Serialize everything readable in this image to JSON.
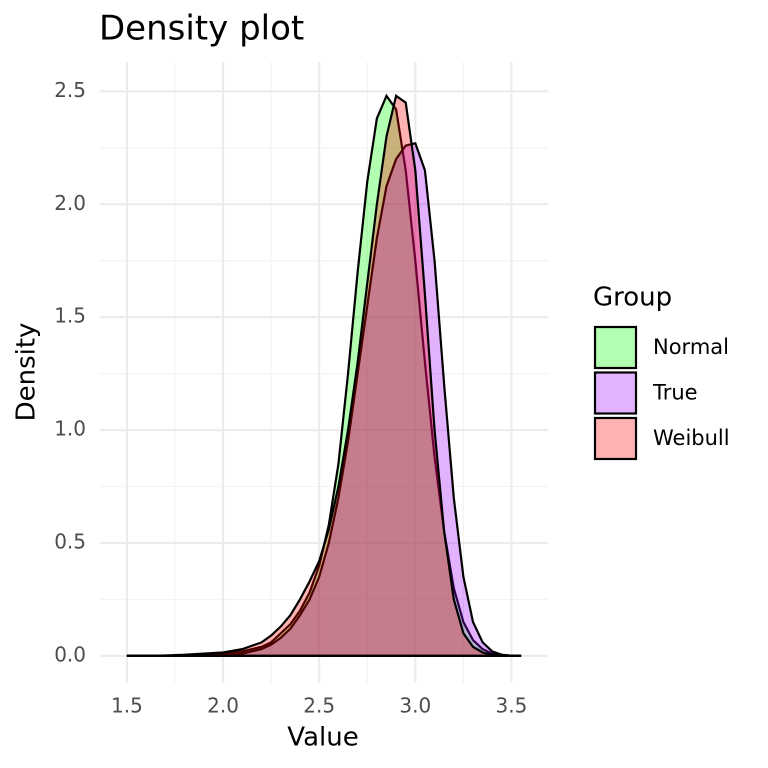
{
  "chart_data": {
    "type": "density",
    "title": "Density plot",
    "x_label": "Value",
    "y_label": "Density",
    "legend_title": "Group",
    "legend_position": "right",
    "grid": true,
    "x": [
      1.5,
      1.6,
      1.7,
      1.8,
      1.9,
      2.0,
      2.1,
      2.2,
      2.25,
      2.3,
      2.35,
      2.4,
      2.45,
      2.5,
      2.55,
      2.6,
      2.65,
      2.7,
      2.75,
      2.8,
      2.85,
      2.9,
      2.95,
      3.0,
      3.05,
      3.1,
      3.15,
      3.2,
      3.25,
      3.3,
      3.35,
      3.4,
      3.45,
      3.5,
      3.55
    ],
    "series": [
      {
        "name": "Normal",
        "color": "#00ff00",
        "values": [
          0,
          0,
          0,
          0.002,
          0.005,
          0.01,
          0.02,
          0.04,
          0.06,
          0.1,
          0.14,
          0.2,
          0.28,
          0.4,
          0.58,
          0.85,
          1.25,
          1.7,
          2.1,
          2.38,
          2.48,
          2.42,
          2.15,
          1.75,
          1.3,
          0.88,
          0.55,
          0.3,
          0.15,
          0.07,
          0.03,
          0.01,
          0.004,
          0.001,
          0
        ]
      },
      {
        "name": "True",
        "color": "#a000ff",
        "values": [
          0,
          0,
          0,
          0,
          0.002,
          0.005,
          0.01,
          0.03,
          0.05,
          0.08,
          0.12,
          0.18,
          0.25,
          0.35,
          0.5,
          0.7,
          0.95,
          1.25,
          1.55,
          1.85,
          2.08,
          2.2,
          2.26,
          2.27,
          2.15,
          1.75,
          1.2,
          0.7,
          0.35,
          0.15,
          0.06,
          0.02,
          0.005,
          0.001,
          0
        ]
      },
      {
        "name": "Weibull",
        "color": "#ff0000",
        "values": [
          0,
          0,
          0.002,
          0.005,
          0.01,
          0.015,
          0.03,
          0.06,
          0.09,
          0.13,
          0.18,
          0.25,
          0.33,
          0.42,
          0.56,
          0.75,
          1.0,
          1.3,
          1.65,
          2.0,
          2.3,
          2.48,
          2.45,
          2.15,
          1.6,
          1.0,
          0.55,
          0.25,
          0.1,
          0.04,
          0.015,
          0.005,
          0.001,
          0,
          0
        ]
      }
    ],
    "xlim": [
      1.36,
      3.69
    ],
    "ylim": [
      -0.12,
      2.63
    ],
    "xticks": [
      1.5,
      {
        "value": 2,
        "label": "2.0"
      },
      2.5,
      {
        "value": 3,
        "label": "3.0"
      },
      3.5
    ],
    "yticks": [
      {
        "value": 0,
        "label": "0.0"
      },
      0.5,
      {
        "value": 1,
        "label": "1.0"
      },
      1.5,
      {
        "value": 2,
        "label": "2.0"
      },
      2.5
    ]
  }
}
